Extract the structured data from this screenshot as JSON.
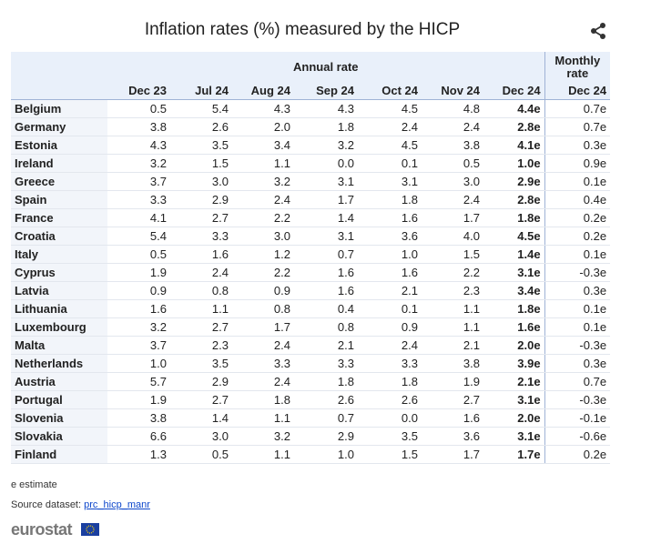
{
  "header": {
    "title": "Inflation rates (%) measured by the HICP"
  },
  "table": {
    "group_headers": [
      "Annual rate",
      "Monthly rate"
    ],
    "columns": [
      "Dec 23",
      "Jul 24",
      "Aug 24",
      "Sep 24",
      "Oct 24",
      "Nov 24",
      "Dec 24",
      "Dec 24"
    ],
    "rows": [
      [
        "Belgium",
        "0.5",
        "5.4",
        "4.3",
        "4.3",
        "4.5",
        "4.8",
        "4.4e",
        "0.7e"
      ],
      [
        "Germany",
        "3.8",
        "2.6",
        "2.0",
        "1.8",
        "2.4",
        "2.4",
        "2.8e",
        "0.7e"
      ],
      [
        "Estonia",
        "4.3",
        "3.5",
        "3.4",
        "3.2",
        "4.5",
        "3.8",
        "4.1e",
        "0.3e"
      ],
      [
        "Ireland",
        "3.2",
        "1.5",
        "1.1",
        "0.0",
        "0.1",
        "0.5",
        "1.0e",
        "0.9e"
      ],
      [
        "Greece",
        "3.7",
        "3.0",
        "3.2",
        "3.1",
        "3.1",
        "3.0",
        "2.9e",
        "0.1e"
      ],
      [
        "Spain",
        "3.3",
        "2.9",
        "2.4",
        "1.7",
        "1.8",
        "2.4",
        "2.8e",
        "0.4e"
      ],
      [
        "France",
        "4.1",
        "2.7",
        "2.2",
        "1.4",
        "1.6",
        "1.7",
        "1.8e",
        "0.2e"
      ],
      [
        "Croatia",
        "5.4",
        "3.3",
        "3.0",
        "3.1",
        "3.6",
        "4.0",
        "4.5e",
        "0.2e"
      ],
      [
        "Italy",
        "0.5",
        "1.6",
        "1.2",
        "0.7",
        "1.0",
        "1.5",
        "1.4e",
        "0.1e"
      ],
      [
        "Cyprus",
        "1.9",
        "2.4",
        "2.2",
        "1.6",
        "1.6",
        "2.2",
        "3.1e",
        "-0.3e"
      ],
      [
        "Latvia",
        "0.9",
        "0.8",
        "0.9",
        "1.6",
        "2.1",
        "2.3",
        "3.4e",
        "0.3e"
      ],
      [
        "Lithuania",
        "1.6",
        "1.1",
        "0.8",
        "0.4",
        "0.1",
        "1.1",
        "1.8e",
        "0.1e"
      ],
      [
        "Luxembourg",
        "3.2",
        "2.7",
        "1.7",
        "0.8",
        "0.9",
        "1.1",
        "1.6e",
        "0.1e"
      ],
      [
        "Malta",
        "3.7",
        "2.3",
        "2.4",
        "2.1",
        "2.4",
        "2.1",
        "2.0e",
        "-0.3e"
      ],
      [
        "Netherlands",
        "1.0",
        "3.5",
        "3.3",
        "3.3",
        "3.3",
        "3.8",
        "3.9e",
        "0.3e"
      ],
      [
        "Austria",
        "5.7",
        "2.9",
        "2.4",
        "1.8",
        "1.8",
        "1.9",
        "2.1e",
        "0.7e"
      ],
      [
        "Portugal",
        "1.9",
        "2.7",
        "1.8",
        "2.6",
        "2.6",
        "2.7",
        "3.1e",
        "-0.3e"
      ],
      [
        "Slovenia",
        "3.8",
        "1.4",
        "1.1",
        "0.7",
        "0.0",
        "1.6",
        "2.0e",
        "-0.1e"
      ],
      [
        "Slovakia",
        "6.6",
        "3.0",
        "3.2",
        "2.9",
        "3.5",
        "3.6",
        "3.1e",
        "-0.6e"
      ],
      [
        "Finland",
        "1.3",
        "0.5",
        "1.1",
        "1.0",
        "1.5",
        "1.7",
        "1.7e",
        "0.2e"
      ]
    ]
  },
  "footer": {
    "note": "e estimate",
    "source_label": "Source dataset:",
    "source_link": "prc_hicp_manr",
    "logo": "eurostat"
  }
}
